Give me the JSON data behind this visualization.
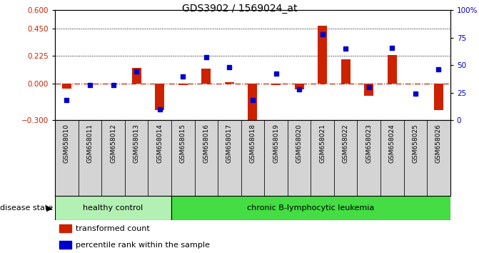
{
  "title": "GDS3902 / 1569024_at",
  "samples": [
    "GSM658010",
    "GSM658011",
    "GSM658012",
    "GSM658013",
    "GSM658014",
    "GSM658015",
    "GSM658016",
    "GSM658017",
    "GSM658018",
    "GSM658019",
    "GSM658020",
    "GSM658021",
    "GSM658022",
    "GSM658023",
    "GSM658024",
    "GSM658025",
    "GSM658026"
  ],
  "transformed_count": [
    -0.04,
    0.0,
    0.0,
    0.13,
    -0.22,
    -0.01,
    0.12,
    0.01,
    -0.32,
    -0.01,
    -0.05,
    0.47,
    0.2,
    -0.1,
    0.23,
    0.0,
    -0.22
  ],
  "percentile_rank": [
    18,
    32,
    32,
    44,
    10,
    40,
    57,
    48,
    18,
    42,
    28,
    78,
    65,
    30,
    66,
    24,
    46
  ],
  "healthy_count": 5,
  "leukemia_count": 12,
  "group_labels": [
    "healthy control",
    "chronic B-lymphocytic leukemia"
  ],
  "healthy_color": "#b3f0b3",
  "leukemia_color": "#44dd44",
  "bar_color": "#cc2200",
  "dot_color": "#0000cc",
  "zero_line_color": "#cc2200",
  "left_ylim": [
    -0.3,
    0.6
  ],
  "right_ylim": [
    0,
    100
  ],
  "left_yticks": [
    -0.3,
    0.0,
    0.225,
    0.45,
    0.6
  ],
  "right_yticks": [
    0,
    25,
    50,
    75,
    100
  ],
  "hline_values": [
    0.225,
    0.45
  ],
  "sample_box_color": "#d4d4d4",
  "background_color": "#ffffff"
}
